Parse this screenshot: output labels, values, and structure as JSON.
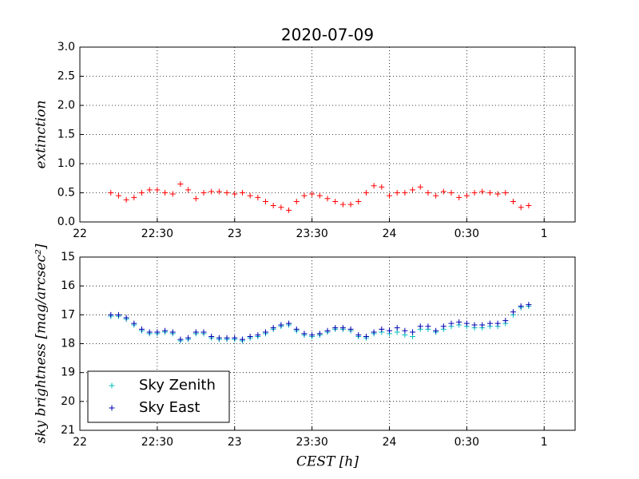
{
  "chart_data": [
    {
      "type": "scatter",
      "title": "2020-07-09",
      "ylabel": "extinction",
      "xlim": [
        22,
        25.2
      ],
      "ylim": [
        0,
        3
      ],
      "xticks": [
        22,
        {
          "value": 22.5,
          "label": "22:30"
        },
        23,
        {
          "value": 23.5,
          "label": "23:30"
        },
        24,
        {
          "value": 24.5,
          "label": "0:30"
        },
        {
          "value": 25,
          "label": "1"
        }
      ],
      "yticks": [
        {
          "value": 0,
          "label": "0.0"
        },
        0.5,
        {
          "value": 1,
          "label": "1.0"
        },
        1.5,
        {
          "value": 2,
          "label": "2.0"
        },
        2.5,
        {
          "value": 3,
          "label": "3.0"
        }
      ],
      "grid": true,
      "series": [
        {
          "color": "#ff0000",
          "x": [
            22.2,
            22.25,
            22.3,
            22.35,
            22.4,
            22.45,
            22.5,
            22.55,
            22.6,
            22.65,
            22.7,
            22.75,
            22.8,
            22.85,
            22.9,
            22.95,
            23,
            23.05,
            23.1,
            23.15,
            23.2,
            23.25,
            23.3,
            23.35,
            23.4,
            23.45,
            23.5,
            23.55,
            23.6,
            23.65,
            23.7,
            23.75,
            23.8,
            23.85,
            23.9,
            23.95,
            24,
            24.05,
            24.1,
            24.15,
            24.2,
            24.25,
            24.3,
            24.35,
            24.4,
            24.45,
            24.5,
            24.55,
            24.6,
            24.65,
            24.7,
            24.75,
            24.8,
            24.85,
            24.9
          ],
          "values": [
            0.5,
            0.45,
            0.38,
            0.42,
            0.5,
            0.55,
            0.55,
            0.5,
            0.48,
            0.65,
            0.55,
            0.4,
            0.5,
            0.52,
            0.52,
            0.5,
            0.48,
            0.5,
            0.45,
            0.42,
            0.35,
            0.28,
            0.25,
            0.2,
            0.35,
            0.45,
            0.48,
            0.45,
            0.4,
            0.35,
            0.3,
            0.3,
            0.35,
            0.5,
            0.62,
            0.6,
            0.45,
            0.5,
            0.5,
            0.55,
            0.6,
            0.5,
            0.45,
            0.52,
            0.5,
            0.42,
            0.45,
            0.5,
            0.52,
            0.5,
            0.48,
            0.5,
            0.35,
            0.25,
            0.28
          ]
        }
      ]
    },
    {
      "type": "scatter",
      "ylabel": "sky brightness [mag/arcsec²]",
      "xlabel": "CEST [h]",
      "xlim": [
        22,
        25.2
      ],
      "ylim": [
        21,
        15
      ],
      "xticks": [
        22,
        {
          "value": 22.5,
          "label": "22:30"
        },
        23,
        {
          "value": 23.5,
          "label": "23:30"
        },
        24,
        {
          "value": 24.5,
          "label": "0:30"
        },
        {
          "value": 25,
          "label": "1"
        }
      ],
      "yticks": [
        15,
        16,
        17,
        18,
        19,
        20,
        21
      ],
      "grid": true,
      "legend": "lower left",
      "series": [
        {
          "name": "Sky Zenith",
          "color": "#00bfbf",
          "x": [
            22.2,
            22.25,
            22.3,
            22.35,
            22.4,
            22.45,
            22.5,
            22.55,
            22.6,
            22.65,
            22.7,
            22.75,
            22.8,
            22.85,
            22.9,
            22.95,
            23,
            23.05,
            23.1,
            23.15,
            23.2,
            23.25,
            23.3,
            23.35,
            23.4,
            23.45,
            23.5,
            23.55,
            23.6,
            23.65,
            23.7,
            23.75,
            23.8,
            23.85,
            23.9,
            23.95,
            24,
            24.05,
            24.1,
            24.15,
            24.2,
            24.25,
            24.3,
            24.35,
            24.4,
            24.45,
            24.5,
            24.55,
            24.6,
            24.65,
            24.7,
            24.75,
            24.8,
            24.85,
            24.9
          ],
          "values": [
            17.05,
            17.05,
            17.15,
            17.35,
            17.55,
            17.65,
            17.65,
            17.6,
            17.65,
            17.9,
            17.85,
            17.65,
            17.65,
            17.8,
            17.85,
            17.85,
            17.85,
            17.9,
            17.8,
            17.75,
            17.65,
            17.5,
            17.4,
            17.35,
            17.55,
            17.7,
            17.75,
            17.7,
            17.6,
            17.5,
            17.5,
            17.55,
            17.75,
            17.8,
            17.65,
            17.6,
            17.65,
            17.6,
            17.7,
            17.75,
            17.5,
            17.5,
            17.6,
            17.5,
            17.4,
            17.35,
            17.4,
            17.45,
            17.45,
            17.4,
            17.4,
            17.3,
            17.0,
            16.75,
            16.7
          ]
        },
        {
          "name": "Sky East",
          "color": "#0000b0",
          "x": [
            22.2,
            22.25,
            22.3,
            22.35,
            22.4,
            22.45,
            22.5,
            22.55,
            22.6,
            22.65,
            22.7,
            22.75,
            22.8,
            22.85,
            22.9,
            22.95,
            23,
            23.05,
            23.1,
            23.15,
            23.2,
            23.25,
            23.3,
            23.35,
            23.4,
            23.45,
            23.5,
            23.55,
            23.6,
            23.65,
            23.7,
            23.75,
            23.8,
            23.85,
            23.9,
            23.95,
            24,
            24.05,
            24.1,
            24.15,
            24.2,
            24.25,
            24.3,
            24.35,
            24.4,
            24.45,
            24.5,
            24.55,
            24.6,
            24.65,
            24.7,
            24.75,
            24.8,
            24.85,
            24.9
          ],
          "values": [
            17.0,
            17.0,
            17.1,
            17.3,
            17.5,
            17.6,
            17.6,
            17.55,
            17.6,
            17.85,
            17.8,
            17.6,
            17.6,
            17.75,
            17.8,
            17.8,
            17.8,
            17.85,
            17.75,
            17.7,
            17.6,
            17.45,
            17.35,
            17.3,
            17.5,
            17.65,
            17.7,
            17.65,
            17.55,
            17.45,
            17.45,
            17.5,
            17.7,
            17.75,
            17.6,
            17.5,
            17.55,
            17.45,
            17.55,
            17.6,
            17.4,
            17.4,
            17.55,
            17.4,
            17.3,
            17.25,
            17.3,
            17.35,
            17.35,
            17.3,
            17.3,
            17.2,
            16.9,
            16.7,
            16.65
          ]
        }
      ]
    }
  ]
}
